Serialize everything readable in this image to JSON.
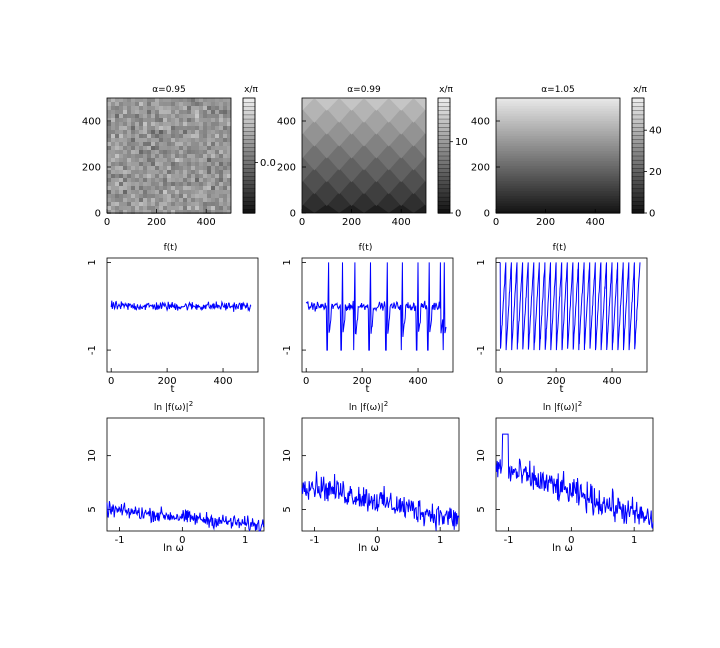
{
  "chart_data": [
    {
      "type": "heatmap",
      "title": "α=0.95",
      "colorbar_label": "x/π",
      "colorbar_ticks": [
        "0.0"
      ],
      "x_ticks": [
        0,
        200,
        400
      ],
      "y_ticks": [
        0,
        200,
        400
      ],
      "xlim": [
        0,
        500
      ],
      "ylim": [
        0,
        500
      ],
      "pattern": "noise"
    },
    {
      "type": "heatmap",
      "title": "α=0.99",
      "colorbar_label": "x/π",
      "colorbar_ticks": [
        "0",
        "10"
      ],
      "x_ticks": [
        0,
        200,
        400
      ],
      "y_ticks": [
        0,
        200,
        400
      ],
      "xlim": [
        0,
        500
      ],
      "ylim": [
        0,
        500
      ],
      "pattern": "zigzag-bands"
    },
    {
      "type": "heatmap",
      "title": "α=1.05",
      "colorbar_label": "x/π",
      "colorbar_ticks": [
        "0",
        "20",
        "40"
      ],
      "x_ticks": [
        0,
        200,
        400
      ],
      "y_ticks": [
        0,
        200,
        400
      ],
      "xlim": [
        0,
        500
      ],
      "ylim": [
        0,
        500
      ],
      "pattern": "horizontal-gradient"
    },
    {
      "type": "line",
      "title": "f(t)",
      "xlabel": "t",
      "x_ticks": [
        0,
        200,
        400
      ],
      "y_ticks": [
        -1,
        1
      ],
      "xlim": [
        -15,
        525
      ],
      "ylim": [
        -1.5,
        1.1
      ],
      "series": [
        {
          "kind": "noise-around-zero",
          "x_range": [
            0,
            500
          ],
          "values": {
            "mean": 0.0,
            "amplitude": 0.15
          }
        }
      ]
    },
    {
      "type": "line",
      "title": "f(t)",
      "xlabel": "t",
      "x_ticks": [
        0,
        200,
        400
      ],
      "y_ticks": [
        -1,
        1
      ],
      "xlim": [
        -15,
        525
      ],
      "ylim": [
        -1.5,
        1.1
      ],
      "series": [
        {
          "kind": "intermittent-spikes",
          "x_range": [
            0,
            500
          ],
          "values": {
            "up_spike_times": [
              80,
              130,
              175,
              230,
              290,
              345,
              400,
              440,
              480,
              495
            ],
            "down_spike_times": [
              75,
              125,
              170,
              225,
              285,
              340,
              395,
              435,
              490
            ],
            "spike_top": 1.0,
            "spike_bottom": -1.0
          }
        }
      ]
    },
    {
      "type": "line",
      "title": "f(t)",
      "xlabel": "t",
      "x_ticks": [
        0,
        200,
        400
      ],
      "y_ticks": [
        -1,
        1
      ],
      "xlim": [
        -15,
        525
      ],
      "ylim": [
        -1.5,
        1.1
      ],
      "series": [
        {
          "kind": "periodic-sawtooth",
          "x_range": [
            0,
            500
          ],
          "values": {
            "period": 20,
            "top": 1.0,
            "bottom": -1.0
          }
        }
      ]
    },
    {
      "type": "line",
      "title": "ln |f(ω)|",
      "title_sup": "2",
      "xlabel": "ln ω",
      "x_ticks": [
        -1,
        0,
        1
      ],
      "y_ticks": [
        5,
        10
      ],
      "xlim": [
        -1.2,
        1.3
      ],
      "ylim": [
        3,
        13.5
      ],
      "series": [
        {
          "kind": "spectrum",
          "values": {
            "start": 5.0,
            "end": 3.5,
            "spread": 1.0
          }
        }
      ]
    },
    {
      "type": "line",
      "title": "ln |f(ω)|",
      "title_sup": "2",
      "xlabel": "ln ω",
      "x_ticks": [
        -1,
        0,
        1
      ],
      "y_ticks": [
        5,
        10
      ],
      "xlim": [
        -1.2,
        1.3
      ],
      "ylim": [
        3,
        13.5
      ],
      "series": [
        {
          "kind": "spectrum",
          "values": {
            "start": 7.5,
            "end": 4.0,
            "spread": 1.8
          }
        }
      ]
    },
    {
      "type": "line",
      "title": "ln |f(ω)|",
      "title_sup": "2",
      "xlabel": "ln ω",
      "x_ticks": [
        -1,
        0,
        1
      ],
      "y_ticks": [
        5,
        10
      ],
      "xlim": [
        -1.2,
        1.3
      ],
      "ylim": [
        3,
        13.5
      ],
      "series": [
        {
          "kind": "spectrum",
          "values": {
            "start": 9.0,
            "end": 4.0,
            "spread": 2.0,
            "peak": 12.0
          }
        }
      ]
    }
  ]
}
